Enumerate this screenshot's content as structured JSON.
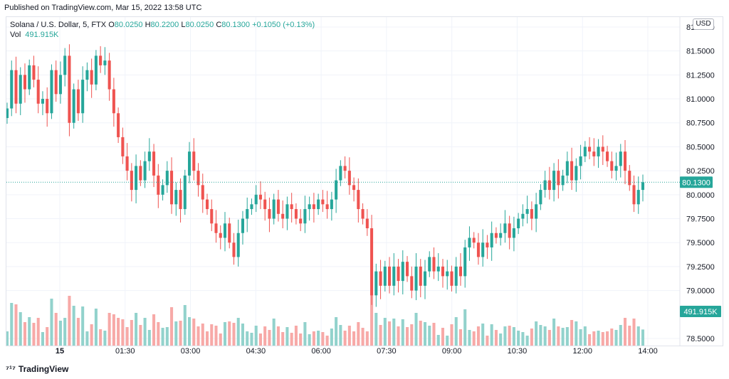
{
  "published": "Published on TradingView.com, Mar 15, 2022 13:58 UTC",
  "legend": {
    "symbol": "Solana / U.S. Dollar, 5, FTX",
    "o_label": "O",
    "o_value": "80.0250",
    "h_label": "H",
    "h_value": "80.2200",
    "l_label": "L",
    "l_value": "80.0250",
    "c_label": "C",
    "c_value": "80.1300",
    "change": "+0.1050 (+0.13%)",
    "vol_label": "Vol",
    "vol_value": "491.915K"
  },
  "currency_badge": "USD",
  "footer_brand": "TradingView",
  "colors": {
    "up": "#26a69a",
    "down": "#ef5350",
    "up_vol": "#92d2cc",
    "down_vol": "#f7a9a7",
    "grid": "#f0f3fa",
    "price_tag": "#26a69a"
  },
  "chart_data": {
    "type": "candlestick",
    "title": "Solana / U.S. Dollar, 5, FTX",
    "ylim": [
      78.5,
      81.72
    ],
    "y_ticks": [
      "81.7500",
      "81.5000",
      "81.2500",
      "81.0000",
      "80.7500",
      "80.5000",
      "80.2500",
      "80.0000",
      "79.7500",
      "79.5000",
      "79.2500",
      "79.0000",
      "78.5000"
    ],
    "x_ticks": [
      "15",
      "01:30",
      "03:00",
      "04:30",
      "06:00",
      "07:30",
      "09:00",
      "10:30",
      "12:00",
      "14:00"
    ],
    "last_price": "80.1300",
    "last_volume": "491.915K",
    "close": [
      80.9,
      81.3,
      80.95,
      81.25,
      81.1,
      81.35,
      81.2,
      80.95,
      81.0,
      80.85,
      81.3,
      81.05,
      81.25,
      81.45,
      80.75,
      81.1,
      80.85,
      81.2,
      81.3,
      81.15,
      81.45,
      81.35,
      81.4,
      81.1,
      80.85,
      80.6,
      80.4,
      80.25,
      80.05,
      80.3,
      80.15,
      80.35,
      80.45,
      80.2,
      80.0,
      80.1,
      80.25,
      79.9,
      80.05,
      79.85,
      80.2,
      80.45,
      80.25,
      80.1,
      79.95,
      79.85,
      79.7,
      79.6,
      79.55,
      79.7,
      79.5,
      79.35,
      79.6,
      79.75,
      79.85,
      79.9,
      80.0,
      79.95,
      79.85,
      79.75,
      79.95,
      79.8,
      79.75,
      79.9,
      79.85,
      79.75,
      79.7,
      79.85,
      79.9,
      79.85,
      79.95,
      79.9,
      79.85,
      79.95,
      80.15,
      80.3,
      80.25,
      80.1,
      80.05,
      79.85,
      79.75,
      79.65,
      78.95,
      79.2,
      79.05,
      79.25,
      79.05,
      79.25,
      79.1,
      79.3,
      79.15,
      79.0,
      79.25,
      79.05,
      79.2,
      79.35,
      79.2,
      79.25,
      79.15,
      79.2,
      79.05,
      79.25,
      79.15,
      79.45,
      79.55,
      79.5,
      79.35,
      79.5,
      79.45,
      79.6,
      79.55,
      79.6,
      79.7,
      79.55,
      79.65,
      79.75,
      79.8,
      79.85,
      79.75,
      79.9,
      80.05,
      80.15,
      80.05,
      80.25,
      80.1,
      80.2,
      80.35,
      80.15,
      80.3,
      80.4,
      80.5,
      80.45,
      80.4,
      80.5,
      80.45,
      80.35,
      80.25,
      80.3,
      80.45,
      80.25,
      80.1,
      79.9,
      80.05,
      80.13
    ]
  }
}
